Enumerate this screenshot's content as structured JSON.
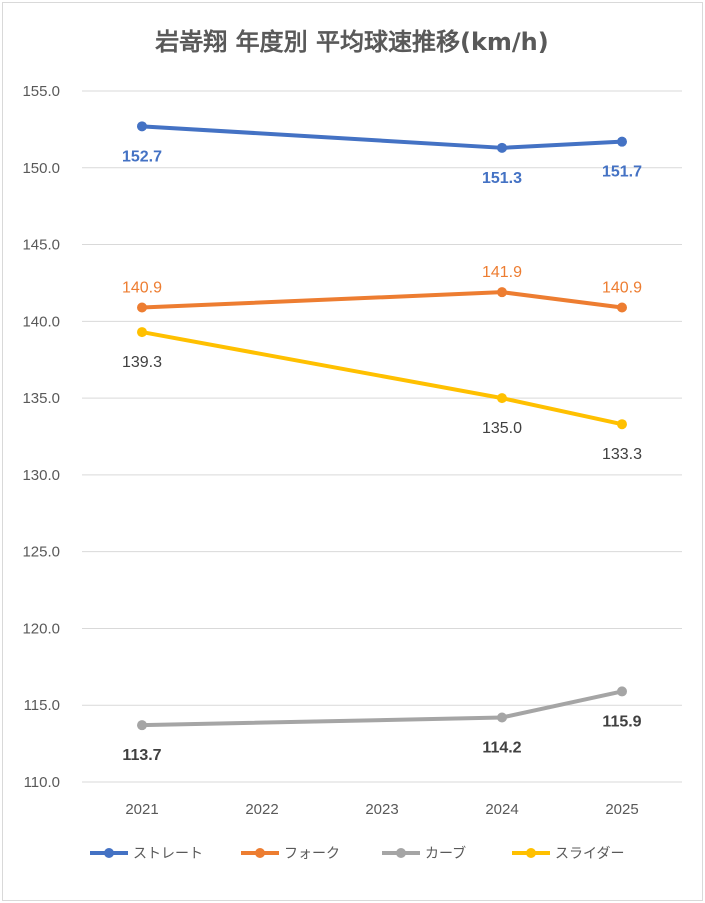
{
  "chart_data": {
    "type": "line",
    "title": "岩嵜翔 年度別 平均球速推移(km/h)",
    "categories": [
      "2021",
      "2022",
      "2023",
      "2024",
      "2025"
    ],
    "ylim": [
      110.0,
      155.0
    ],
    "yticks": [
      "110.0",
      "115.0",
      "120.0",
      "125.0",
      "130.0",
      "135.0",
      "140.0",
      "145.0",
      "150.0",
      "155.0"
    ],
    "grid": true,
    "legend_position": "bottom",
    "series": [
      {
        "name": "ストレート",
        "color": "#4472C4",
        "values": [
          152.7,
          null,
          null,
          151.3,
          151.7
        ],
        "labels": [
          "152.7",
          "",
          "",
          "151.3",
          "151.7"
        ],
        "label_bold": true,
        "label_position": [
          "below",
          "",
          "",
          "below",
          "below"
        ]
      },
      {
        "name": "フォーク",
        "color": "#ED7D31",
        "values": [
          140.9,
          null,
          null,
          141.9,
          140.9
        ],
        "labels": [
          "140.9",
          "",
          "",
          "141.9",
          "140.9"
        ],
        "label_bold": false,
        "label_position": [
          "above",
          "",
          "",
          "above",
          "above"
        ]
      },
      {
        "name": "カーブ",
        "color": "#A5A5A5",
        "label_color": "#404040",
        "values": [
          113.7,
          null,
          null,
          114.2,
          115.9
        ],
        "labels": [
          "113.7",
          "",
          "",
          "114.2",
          "115.9"
        ],
        "label_bold": true,
        "label_position": [
          "below",
          "",
          "",
          "below",
          "below"
        ]
      },
      {
        "name": "スライダー",
        "color": "#FFC000",
        "label_color": "#404040",
        "values": [
          139.3,
          null,
          null,
          135.0,
          133.3
        ],
        "labels": [
          "139.3",
          "",
          "",
          "135.0",
          "133.3"
        ],
        "label_bold": false,
        "label_position": [
          "below",
          "",
          "",
          "below",
          "below"
        ]
      }
    ]
  }
}
